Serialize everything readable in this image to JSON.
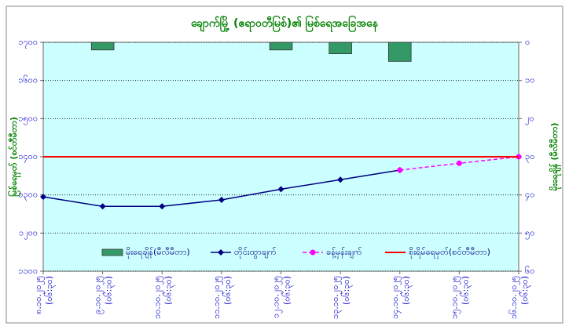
{
  "chart_data": {
    "type": "combo",
    "title": "ချောက်မြို့ (ဧရာဝတီမြစ်)၏ မြစ်ရေအခြေအနေ",
    "y_label": "မြစ်ရေမှတ် (စင်တီမီတာ)",
    "y2_label": "မိုးရေချိန် (မီလီမီတာ)",
    "categories": [
      "၈.၁၀.၂၀၂၅",
      "၉.၁၀.၂၀၂၅",
      "၁၀.၁၀.၂၀၂၅",
      "၁၁.၁၀.၂၀၂၅",
      "၁၂.၁၀.၂၀၂၅",
      "၁၃.၁၀.၂၀၂၅",
      "၁၄.၁၀.၂၀၂၅",
      "၁၅.၁၀.၂၀၂၅",
      "၁၆.၁၀.၂၀၂၅"
    ],
    "category_times": [
      "(၀၆:၃၀)",
      "(၀၆:၃၀)",
      "(၀၆:၃၀)",
      "(၀၆:၃၀)",
      "(၀၆:၃၀)",
      "(၀၆:၃၀)",
      "(၀၆:၃၀)",
      "(၀၆:၃၀)",
      "(၀၆:၃၀)"
    ],
    "series": [
      {
        "name": "မိုးရေချိန်(မီလီမီတာ)",
        "type": "bar",
        "axis": "y2",
        "color": "#339966",
        "values": [
          0,
          2,
          0,
          0,
          2,
          3,
          5,
          null,
          null
        ]
      },
      {
        "name": "တိုင်းထွာချက်",
        "type": "line",
        "marker": "diamond",
        "color": "#000080",
        "values": [
          1295,
          1270,
          1270,
          1287,
          1315,
          1340,
          1365,
          null,
          null
        ]
      },
      {
        "name": "ခန့်မှန်းချက်",
        "type": "line",
        "marker": "circle",
        "dashed": true,
        "color": "#ff00ff",
        "values": [
          null,
          null,
          null,
          null,
          null,
          null,
          1365,
          1383,
          1400
        ]
      },
      {
        "name": "စိုးရိမ်ရေမှတ်(စင်တီမီတာ)",
        "type": "line",
        "color": "#ff0000",
        "values": [
          1400,
          1400,
          1400,
          1400,
          1400,
          1400,
          1400,
          1400,
          1400
        ]
      }
    ],
    "ylim": [
      1100,
      1700
    ],
    "yticks": [
      {
        "value": 1100,
        "label": "၁၁၀၀"
      },
      {
        "value": 1200,
        "label": "၁၂၀၀"
      },
      {
        "value": 1300,
        "label": "၁၃၀၀"
      },
      {
        "value": 1400,
        "label": "၁၄၀၀"
      },
      {
        "value": 1500,
        "label": "၁၅၀၀"
      },
      {
        "value": 1600,
        "label": "၁၆၀၀"
      },
      {
        "value": 1700,
        "label": "၁၇၀၀"
      }
    ],
    "y2lim": [
      60,
      0
    ],
    "y2ticks": [
      {
        "value": 0,
        "label": "၀"
      },
      {
        "value": 10,
        "label": "၁၀"
      },
      {
        "value": 20,
        "label": "၂၀"
      },
      {
        "value": 30,
        "label": "၃၀"
      },
      {
        "value": 40,
        "label": "၄၀"
      },
      {
        "value": 50,
        "label": "၅၀"
      },
      {
        "value": 60,
        "label": "၆၀"
      }
    ],
    "grid": true,
    "legend": "bottom"
  }
}
